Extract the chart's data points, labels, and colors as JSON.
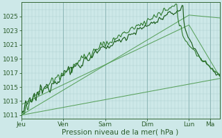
{
  "xlabel": "Pression niveau de la mer( hPa )",
  "bg_color": "#cde8e8",
  "grid_color_minor": "#b0d0d0",
  "grid_color_major": "#90b8b8",
  "line_color_dark": "#1a5c1a",
  "line_color_mid": "#2d7a2d",
  "line_color_light": "#4d9a4d",
  "ylim": [
    1010.5,
    1027.0
  ],
  "yticks": [
    1011,
    1013,
    1015,
    1017,
    1019,
    1021,
    1023,
    1025
  ],
  "day_labels": [
    "Jeu",
    "Ven",
    "Sam",
    "Dim",
    "Lun",
    "Ma"
  ],
  "day_positions": [
    0,
    48,
    96,
    144,
    192,
    216
  ],
  "total_points": 228,
  "minor_grid_interval": 4,
  "xlabel_fontsize": 7.5,
  "tick_fontsize": 6.5
}
